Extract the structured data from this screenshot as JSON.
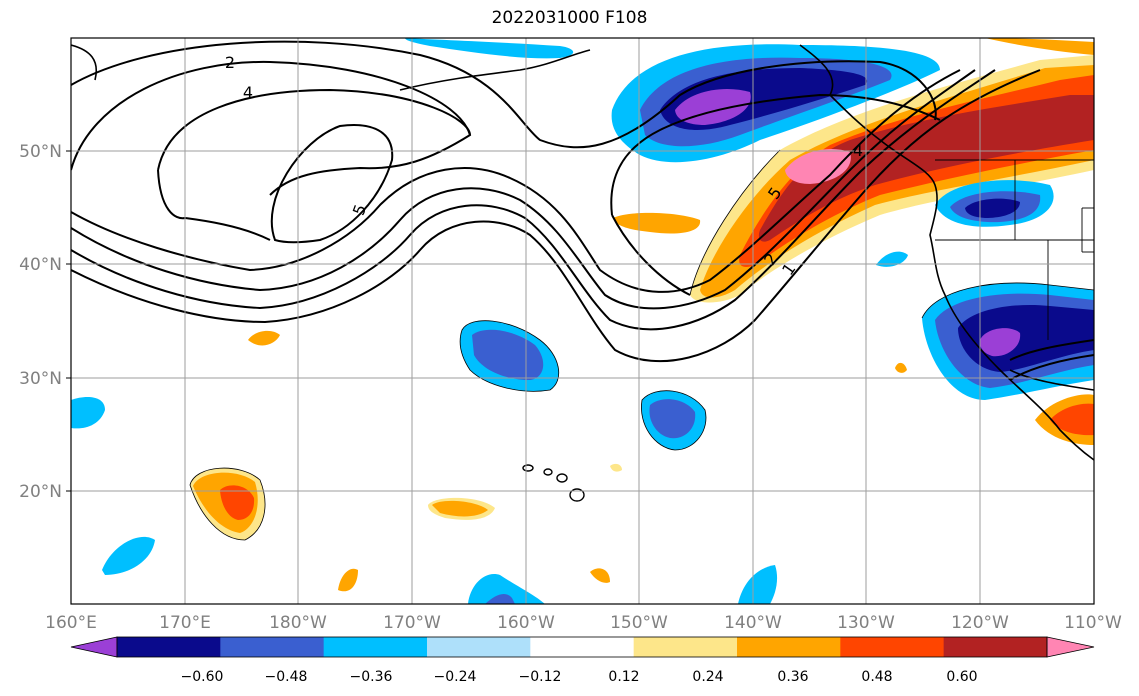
{
  "title": "2022031000 F108",
  "lon_labels": [
    "160°E",
    "170°E",
    "180°W",
    "170°W",
    "160°W",
    "150°W",
    "140°W",
    "130°W",
    "120°W",
    "110°W"
  ],
  "lat_labels": [
    "50°N",
    "40°N",
    "30°N",
    "20°N"
  ],
  "contour_labels": [
    "2",
    "4",
    "5",
    "5",
    "4",
    "2",
    "1"
  ],
  "colorbar": {
    "ticks": [
      "−0.60",
      "−0.48",
      "−0.36",
      "−0.24",
      "−0.12",
      "0.12",
      "0.24",
      "0.36",
      "0.48",
      "0.60"
    ],
    "colors": [
      "#9b3fd6",
      "#0a0a8c",
      "#3a5fd0",
      "#00bfff",
      "#aee0fa",
      "#ffffff",
      "#fde68a",
      "#ffa500",
      "#ff4500",
      "#b22222",
      "#ff85b3"
    ]
  },
  "map_extent": {
    "lon_min": 160,
    "lon_max": 250,
    "lat_min": 10,
    "lat_max": 60
  }
}
